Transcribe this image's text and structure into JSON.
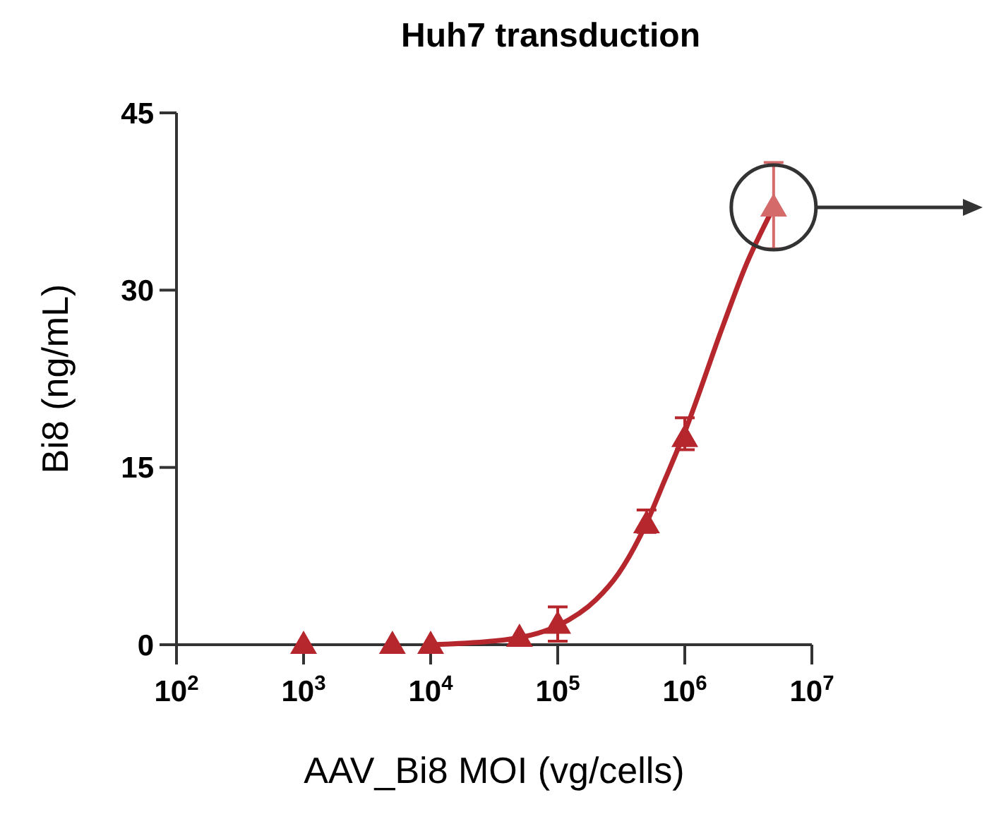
{
  "chart_data": {
    "type": "scatter",
    "title": "Huh7 transduction",
    "xlabel": "AAV_Bi8 MOI (vg/cells)",
    "ylabel": "Bi8 (ng/mL)",
    "log": "x",
    "marker": "triangle",
    "grid": false,
    "xlim": [
      100,
      10000000
    ],
    "xticks": [
      {
        "value": 100,
        "label": "10$^{2}$"
      },
      {
        "value": 1000,
        "label": "10$^{3}$"
      },
      {
        "value": 10000,
        "label": "10$^{4}$"
      },
      {
        "value": 100000,
        "label": "10$^{5}$"
      },
      {
        "value": 1000000,
        "label": "10$^{6}$"
      },
      {
        "value": 10000000,
        "label": "10$^{7}$"
      }
    ],
    "ylim": [
      0,
      45
    ],
    "yticks": [
      0,
      15,
      30,
      45
    ],
    "series": [
      {
        "type": "line",
        "color": "#b5262d",
        "marker": "none",
        "x": [
          10000,
          30000,
          50000,
          100000,
          200000,
          300000,
          500000,
          700000,
          1000000,
          2000000,
          3000000,
          5000000
        ],
        "values": [
          0,
          0.3,
          0.6,
          1.6,
          3.8,
          6,
          10.3,
          14,
          18,
          27,
          32,
          37
        ]
      },
      {
        "color": "#b5262d",
        "x": [
          1000,
          5000,
          10000,
          50000,
          100000,
          500000,
          1000000
        ],
        "values": [
          0,
          0,
          0,
          0.6,
          1.7,
          10.2,
          17.5
        ],
        "errors": [
          null,
          null,
          null,
          null,
          [
            0.3,
            3.2
          ],
          [
            9.5,
            11.4
          ],
          [
            16.5,
            19.2
          ]
        ]
      },
      {
        "color": "#d46a6a",
        "x": [
          5000000
        ],
        "values": [
          37
        ],
        "errors": [
          [
            33.5,
            40.8
          ]
        ]
      }
    ]
  }
}
